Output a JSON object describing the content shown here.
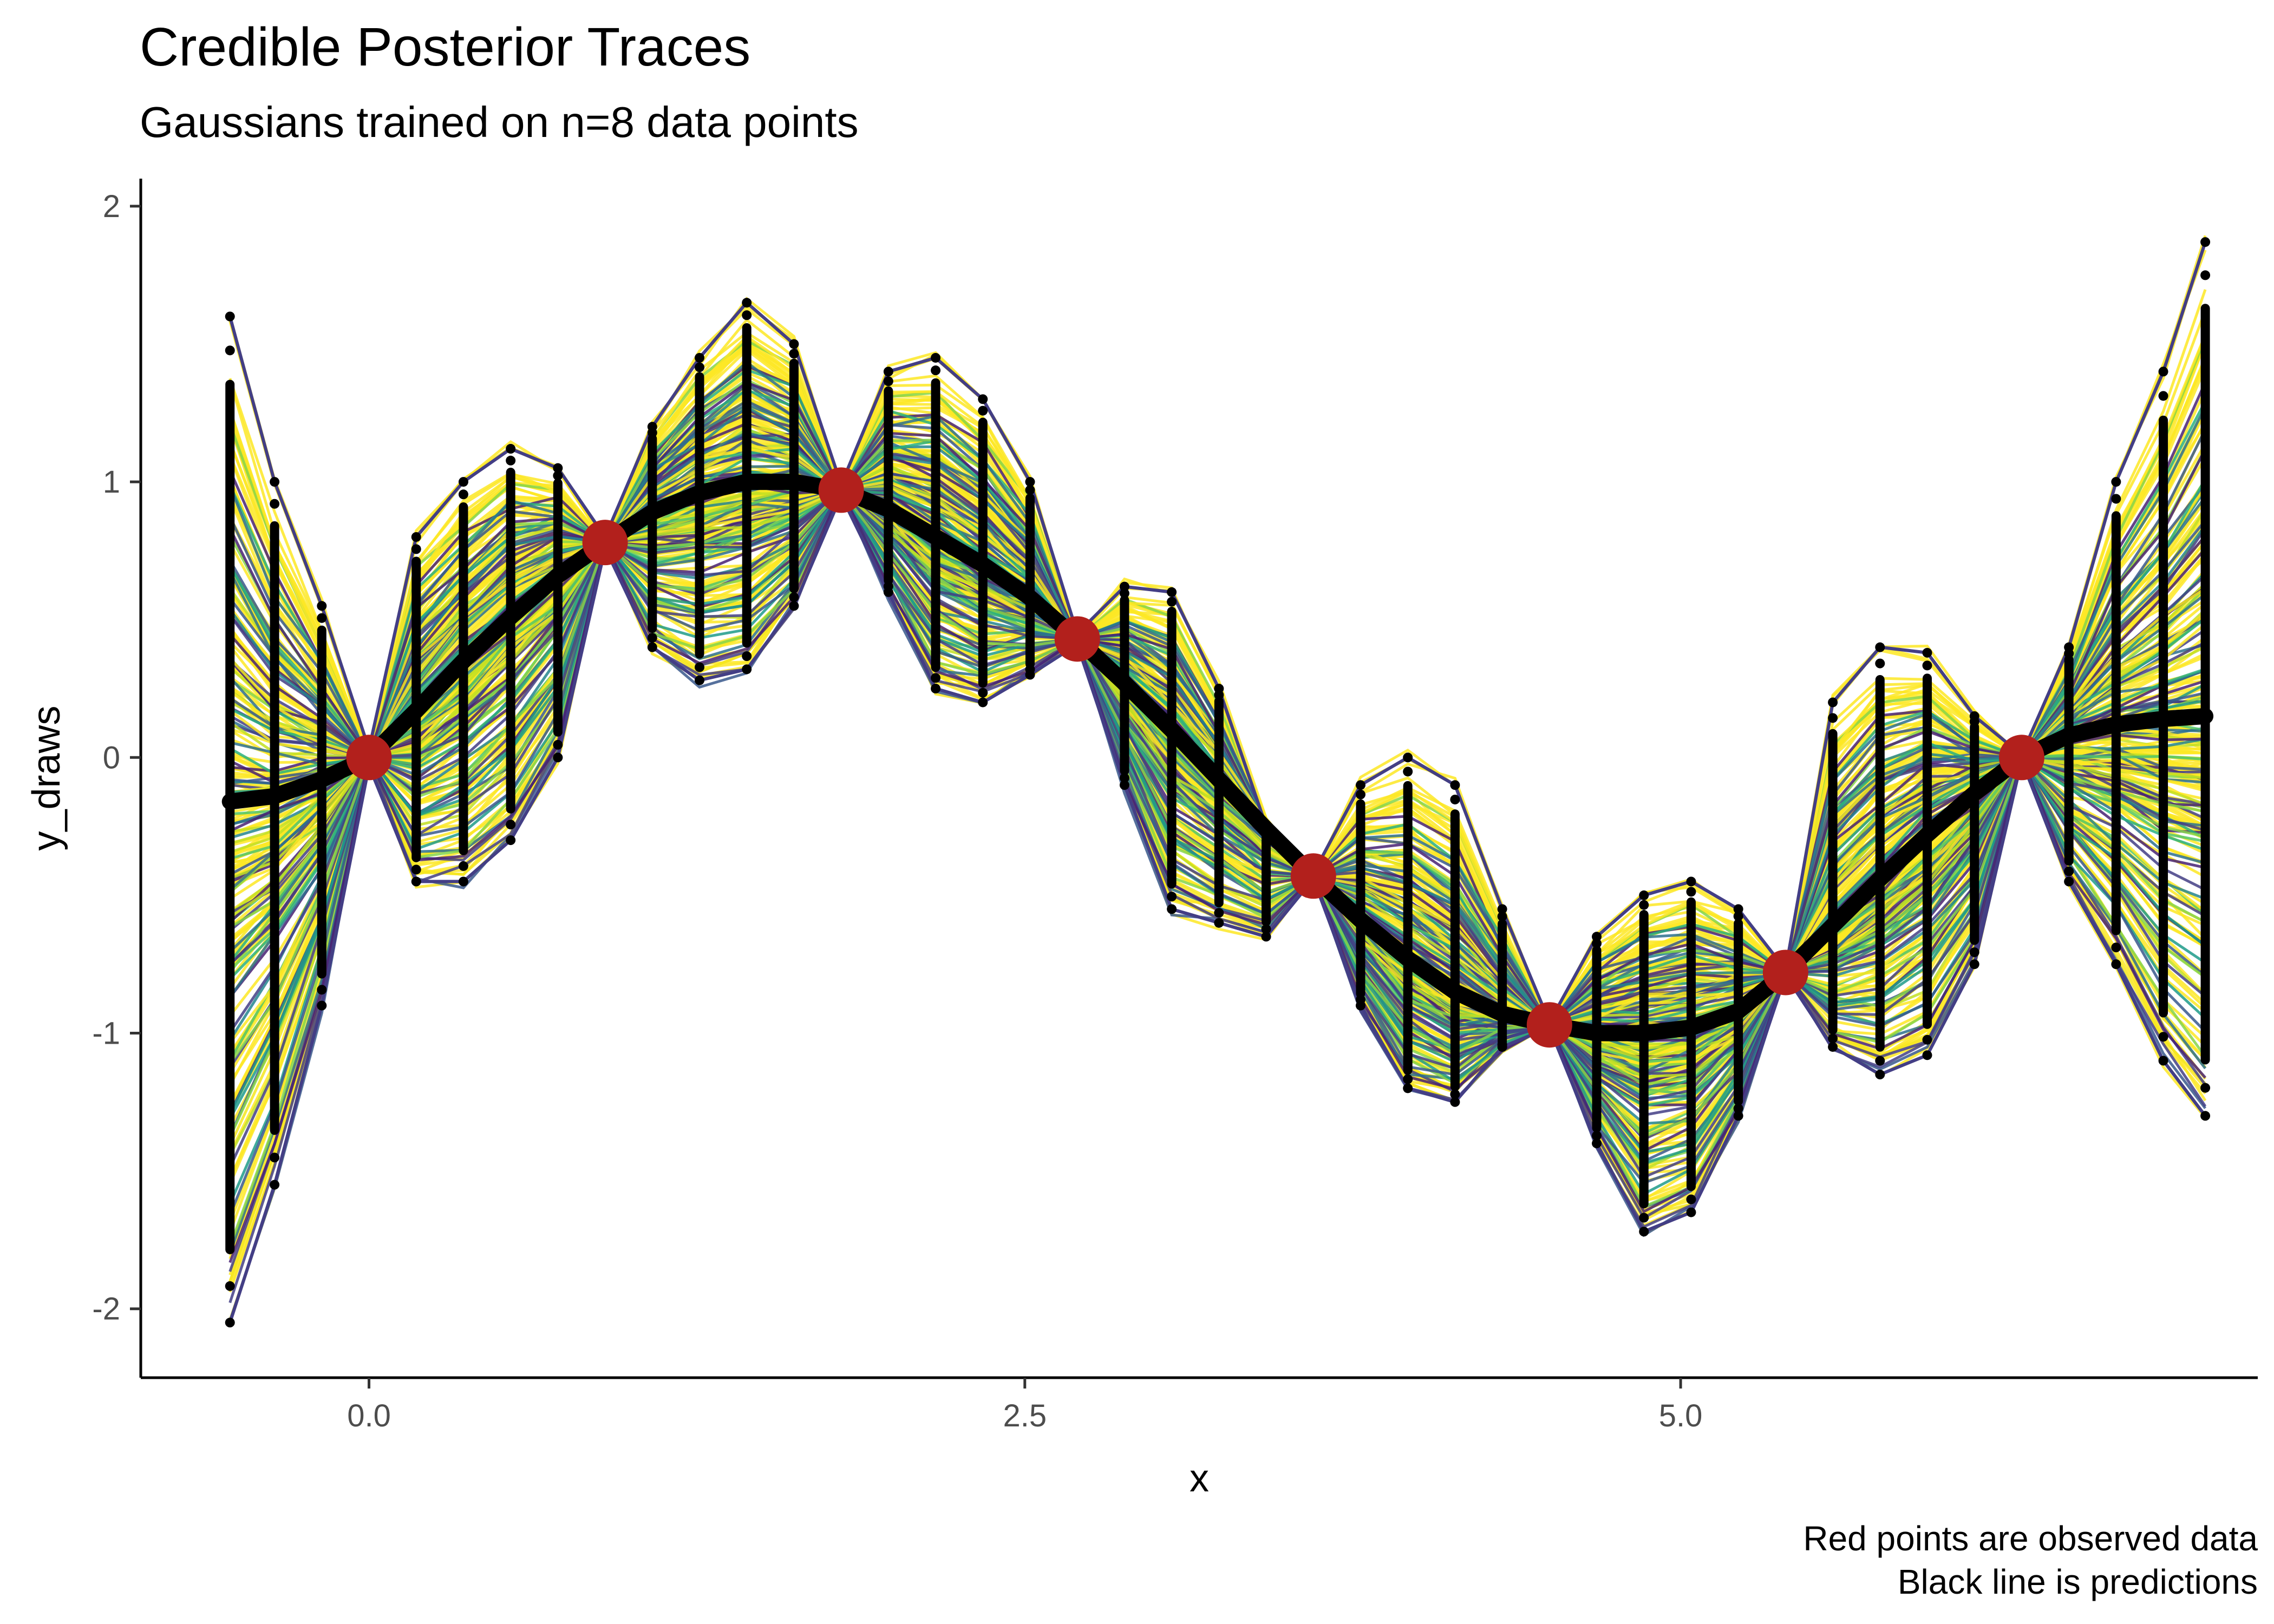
{
  "chart_data": {
    "type": "line",
    "title": "Credible Posterior Traces",
    "subtitle": "Gaussians trained on n=8 data points",
    "xlabel": "x",
    "ylabel": "y_draws",
    "caption": [
      "Red points are observed data",
      "Black line is predictions"
    ],
    "xlim": [
      -0.87,
      7.2
    ],
    "ylim": [
      -2.25,
      2.1
    ],
    "x_ticks": [
      0.0,
      2.5,
      5.0
    ],
    "x_tick_labels": [
      "0.0",
      "2.5",
      "5.0"
    ],
    "y_ticks": [
      -2,
      -1,
      0,
      1,
      2
    ],
    "y_tick_labels": [
      "-2",
      "-1",
      "0",
      "1",
      "2"
    ],
    "grid": false,
    "observed": {
      "x": [
        0.0,
        0.9,
        1.8,
        2.7,
        3.6,
        4.5,
        5.4,
        6.3
      ],
      "y": [
        0.0,
        0.78,
        0.97,
        0.43,
        -0.43,
        -0.97,
        -0.78,
        0.0
      ],
      "color": "#b2201c"
    },
    "prediction": {
      "x": [
        -0.53,
        -0.36,
        -0.18,
        0.0,
        0.18,
        0.36,
        0.54,
        0.72,
        0.9,
        1.08,
        1.26,
        1.44,
        1.62,
        1.8,
        1.98,
        2.16,
        2.34,
        2.52,
        2.7,
        2.88,
        3.06,
        3.24,
        3.42,
        3.6,
        3.78,
        3.96,
        4.14,
        4.32,
        4.5,
        4.68,
        4.86,
        5.04,
        5.22,
        5.4,
        5.58,
        5.76,
        5.94,
        6.12,
        6.3,
        6.48,
        6.66,
        6.84,
        7.0
      ],
      "y": [
        -0.16,
        -0.14,
        -0.08,
        0.0,
        0.17,
        0.35,
        0.51,
        0.66,
        0.78,
        0.89,
        0.96,
        1.0,
        1.0,
        0.97,
        0.9,
        0.8,
        0.7,
        0.58,
        0.43,
        0.27,
        0.1,
        -0.08,
        -0.26,
        -0.43,
        -0.59,
        -0.73,
        -0.85,
        -0.93,
        -0.97,
        -1.0,
        -1.0,
        -0.98,
        -0.92,
        -0.78,
        -0.61,
        -0.44,
        -0.28,
        -0.13,
        0.0,
        0.08,
        0.12,
        0.14,
        0.15
      ],
      "color": "#000000"
    },
    "band_upper": [
      1.6,
      1.0,
      0.55,
      0.03,
      0.8,
      1.0,
      1.12,
      1.05,
      0.8,
      1.2,
      1.45,
      1.65,
      1.5,
      0.99,
      1.4,
      1.45,
      1.3,
      1.0,
      0.45,
      0.62,
      0.6,
      0.25,
      -0.25,
      -0.42,
      -0.1,
      0.0,
      -0.1,
      -0.55,
      -0.96,
      -0.65,
      -0.5,
      -0.45,
      -0.55,
      -0.77,
      0.2,
      0.4,
      0.38,
      0.15,
      0.01,
      0.4,
      1.0,
      1.4,
      1.87
    ],
    "band_lower": [
      -2.05,
      -1.55,
      -0.9,
      -0.03,
      -0.45,
      -0.45,
      -0.3,
      0.0,
      0.76,
      0.4,
      0.28,
      0.32,
      0.55,
      0.95,
      0.6,
      0.25,
      0.2,
      0.3,
      0.41,
      -0.1,
      -0.55,
      -0.6,
      -0.65,
      -0.44,
      -0.9,
      -1.2,
      -1.25,
      -1.05,
      -0.98,
      -1.4,
      -1.72,
      -1.65,
      -1.3,
      -0.79,
      -1.05,
      -1.15,
      -1.08,
      -0.75,
      -0.01,
      -0.45,
      -0.75,
      -1.1,
      -1.3
    ],
    "trace_colors": [
      "#fde725",
      "#c2df23",
      "#86d549",
      "#52c569",
      "#2ab07f",
      "#1e9b8a",
      "#25858e",
      "#2d708e",
      "#38588c",
      "#433e85",
      "#482173",
      "#f5e61e"
    ],
    "trace_count": 260,
    "legend": "none"
  }
}
